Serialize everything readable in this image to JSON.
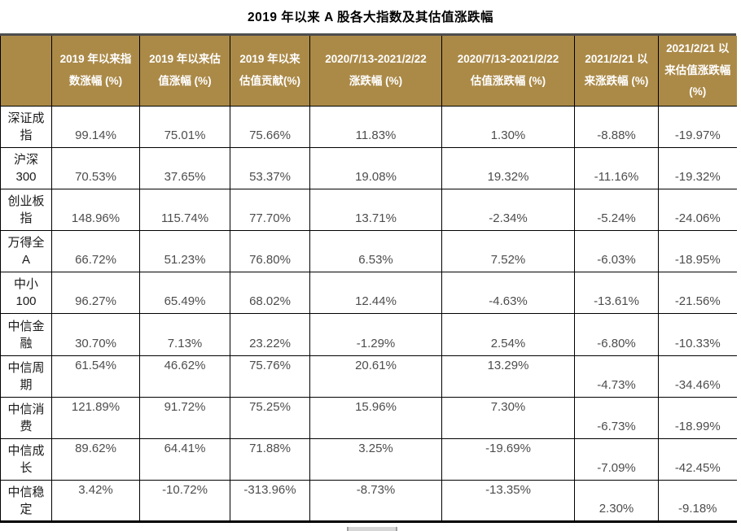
{
  "chart_data": {
    "type": "table",
    "title": "2019 年以来 A 股各大指数及其估值涨跌幅",
    "columns": [
      "",
      "2019 年以来指数涨幅 (%)",
      "2019 年以来估值涨幅 (%)",
      "2019 年以来估值贡献(%)",
      "2020/7/13-2021/2/22 涨跌幅 (%)",
      "2020/7/13-2021/2/22 估值涨跌幅 (%)",
      "2021/2/21 以来涨跌幅 (%)",
      "2021/2/21 以来估值涨跌幅 (%)"
    ],
    "rows": [
      {
        "name": "深证成指",
        "values": [
          "99.14%",
          "75.01%",
          "75.66%",
          "11.83%",
          "1.30%",
          "-8.88%",
          "-19.97%"
        ],
        "valign": "bottom"
      },
      {
        "name": "沪深300",
        "values": [
          "70.53%",
          "37.65%",
          "53.37%",
          "19.08%",
          "19.32%",
          "-11.16%",
          "-19.32%"
        ],
        "valign": "bottom"
      },
      {
        "name": "创业板指",
        "values": [
          "148.96%",
          "115.74%",
          "77.70%",
          "13.71%",
          "-2.34%",
          "-5.24%",
          "-24.06%"
        ],
        "valign": "bottom"
      },
      {
        "name": "万得全A",
        "values": [
          "66.72%",
          "51.23%",
          "76.80%",
          "6.53%",
          "7.52%",
          "-6.03%",
          "-18.95%"
        ],
        "valign": "bottom"
      },
      {
        "name": "中小100",
        "values": [
          "96.27%",
          "65.49%",
          "68.02%",
          "12.44%",
          "-4.63%",
          "-13.61%",
          "-21.56%"
        ],
        "valign": "bottom"
      },
      {
        "name": "中信金融",
        "values": [
          "30.70%",
          "7.13%",
          "23.22%",
          "-1.29%",
          "2.54%",
          "-6.80%",
          "-10.33%"
        ],
        "valign": "bottom"
      },
      {
        "name": "中信周期",
        "values": [
          "61.54%",
          "46.62%",
          "75.76%",
          "20.61%",
          "13.29%",
          "-4.73%",
          "-34.46%"
        ],
        "valign": "split"
      },
      {
        "name": "中信消费",
        "values": [
          "121.89%",
          "91.72%",
          "75.25%",
          "15.96%",
          "7.30%",
          "-6.73%",
          "-18.99%"
        ],
        "valign": "split"
      },
      {
        "name": "中信成长",
        "values": [
          "89.62%",
          "64.41%",
          "71.88%",
          "3.25%",
          "-19.69%",
          "-7.09%",
          "-42.45%"
        ],
        "valign": "split"
      },
      {
        "name": "中信稳定",
        "values": [
          "3.42%",
          "-10.72%",
          "-313.96%",
          "-8.73%",
          "-13.35%",
          "2.30%",
          "-9.18%"
        ],
        "valign": "split"
      }
    ]
  },
  "colors": {
    "header_bg": "#AB8A48",
    "header_text": "#FFFFFF",
    "grid_border": "#000000",
    "value_text": "#4D4D4D",
    "name_text": "#1A1A1A",
    "title_text": "#000000",
    "top_rule": "#4D4D4D",
    "scrollbar": "#D6D6D6"
  }
}
